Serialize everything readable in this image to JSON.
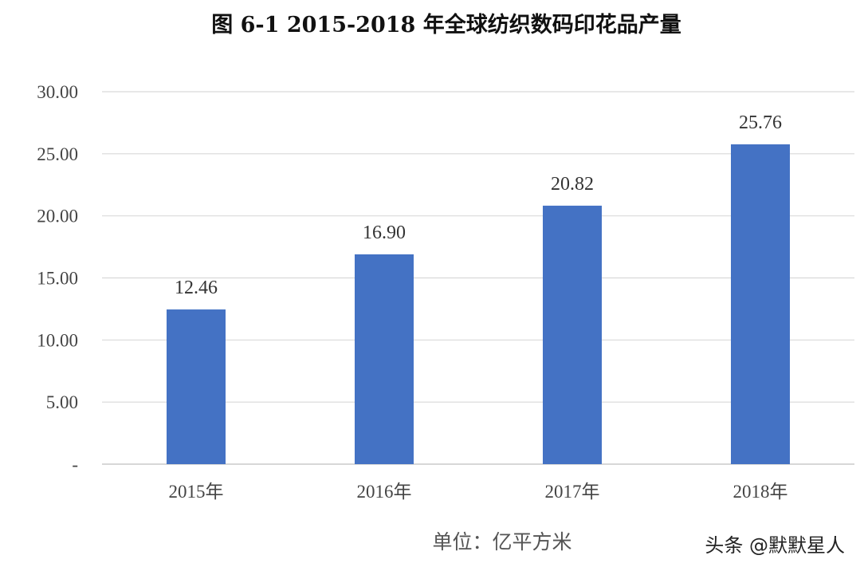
{
  "chart_data": {
    "type": "bar",
    "title": "图 6-1    2015-2018 年全球纺织数码印花品产量",
    "categories": [
      "2015年",
      "2016年",
      "2017年",
      "2018年"
    ],
    "series": [
      {
        "values": [
          12.46,
          16.9,
          20.82,
          25.76
        ],
        "data_labels": [
          "12.46",
          "16.90",
          "20.82",
          "25.76"
        ]
      }
    ],
    "ylim": [
      0,
      30
    ],
    "y_ticks": [
      0,
      5,
      10,
      15,
      20,
      25,
      30
    ],
    "y_tick_labels": [
      "-",
      "5.00",
      "10.00",
      "15.00",
      "20.00",
      "25.00",
      "30.00"
    ],
    "grid": true,
    "legend": "none",
    "unit_note": "单位：亿平方米",
    "bar_color": "#4472C4"
  },
  "watermark": "头条 @默默星人"
}
